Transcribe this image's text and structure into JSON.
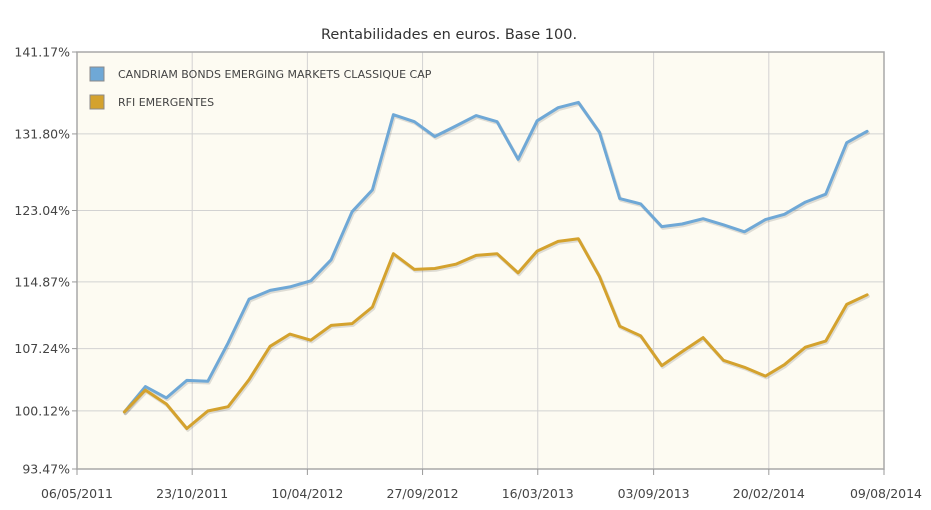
{
  "chart_data": {
    "type": "line",
    "title": "Rentabilidades en euros. Base 100.",
    "xlabel": "",
    "ylabel": "",
    "y_tick_labels": [
      "93.47%",
      "100.12%",
      "107.24%",
      "114.87%",
      "123.04%",
      "131.80%",
      "141.17%"
    ],
    "y_ticks": [
      93.47,
      100.12,
      107.24,
      114.87,
      123.04,
      131.8,
      141.17
    ],
    "ylim": [
      93.47,
      141.17
    ],
    "x_tick_labels": [
      "06/05/2011",
      "23/10/2011",
      "10/04/2012",
      "27/09/2012",
      "16/03/2013",
      "03/09/2013",
      "20/02/2014",
      "09/08/2014"
    ],
    "xlim": [
      "06/05/2011",
      "09/08/2014"
    ],
    "x": [
      "2011-07-15",
      "2011-08-15",
      "2011-09-15",
      "2011-10-15",
      "2011-11-15",
      "2011-12-15",
      "2012-01-15",
      "2012-02-15",
      "2012-03-15",
      "2012-04-15",
      "2012-05-15",
      "2012-06-15",
      "2012-07-15",
      "2012-08-15",
      "2012-09-15",
      "2012-10-15",
      "2012-11-15",
      "2012-12-15",
      "2013-01-15",
      "2013-02-15",
      "2013-03-15",
      "2013-04-15",
      "2013-05-15",
      "2013-06-15",
      "2013-07-15",
      "2013-08-15",
      "2013-09-15",
      "2013-10-15",
      "2013-11-15",
      "2013-12-15",
      "2014-01-15",
      "2014-02-15",
      "2014-03-15",
      "2014-04-15",
      "2014-05-15",
      "2014-06-15",
      "2014-07-15"
    ],
    "grid": true,
    "legend_position": "top-left",
    "background_color": "#fdfbf2",
    "series": [
      {
        "name": "CANDRIAM BONDS EMERGING MARKETS CLASSIQUE CAP",
        "color": "#6fa8d6",
        "values": [
          100.0,
          102.9,
          101.6,
          103.6,
          103.5,
          107.9,
          112.9,
          113.9,
          114.3,
          115.0,
          117.4,
          122.9,
          125.4,
          134.0,
          133.2,
          131.5,
          132.7,
          133.9,
          133.2,
          128.9,
          133.3,
          134.8,
          135.4,
          132.0,
          124.4,
          123.8,
          121.2,
          121.5,
          122.1,
          121.4,
          120.6,
          122.0,
          122.6,
          124.0,
          124.9,
          130.8,
          132.1
        ]
      },
      {
        "name": "RFI EMERGENTES",
        "color": "#d4a22e",
        "values": [
          100.0,
          102.5,
          100.9,
          98.1,
          100.1,
          100.6,
          103.7,
          107.5,
          108.9,
          108.2,
          109.9,
          110.1,
          112.0,
          118.1,
          116.3,
          116.4,
          116.9,
          117.9,
          118.1,
          115.9,
          118.4,
          119.5,
          119.8,
          115.5,
          109.8,
          108.7,
          105.3,
          106.9,
          108.5,
          105.9,
          105.1,
          104.1,
          105.4,
          107.4,
          108.1,
          112.3,
          113.4
        ]
      }
    ]
  }
}
